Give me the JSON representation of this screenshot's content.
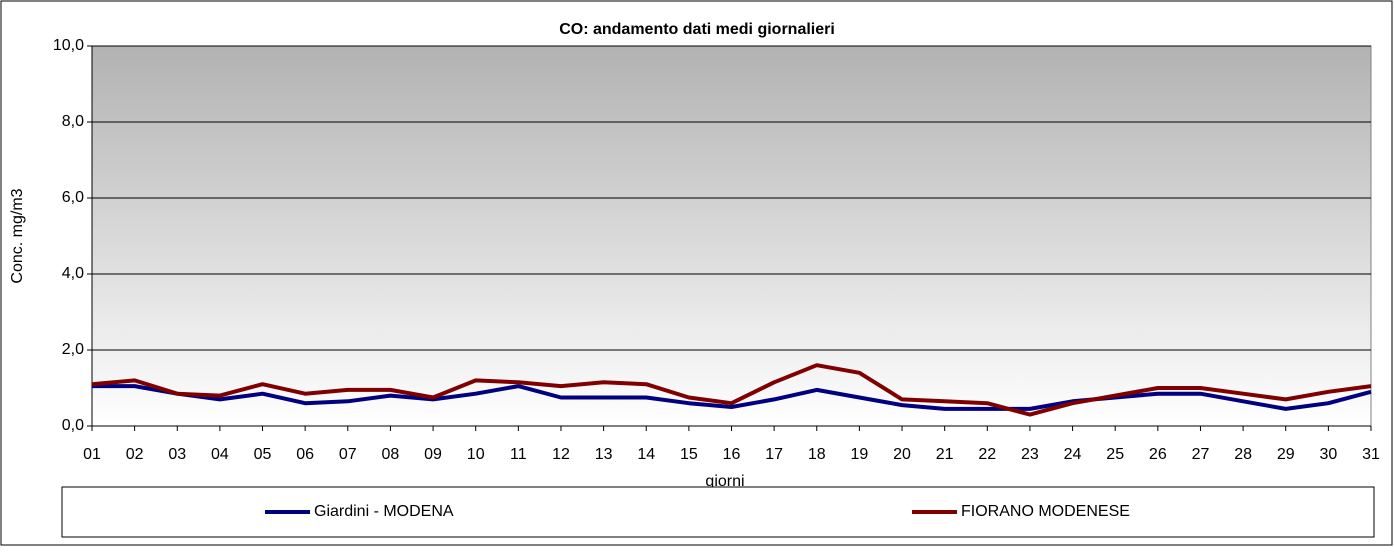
{
  "chart_data": {
    "type": "line",
    "title": "CO: andamento dati medi giornalieri",
    "x_label": "giorni",
    "y_label": "Conc. mg/m3",
    "categories": [
      "01",
      "02",
      "03",
      "04",
      "05",
      "06",
      "07",
      "08",
      "09",
      "10",
      "11",
      "12",
      "13",
      "14",
      "15",
      "16",
      "17",
      "18",
      "19",
      "20",
      "21",
      "22",
      "23",
      "24",
      "25",
      "26",
      "27",
      "28",
      "29",
      "30",
      "31"
    ],
    "series": [
      {
        "name": "Giardini  - MODENA",
        "color": "#000080",
        "values": [
          1.05,
          1.05,
          0.85,
          0.7,
          0.85,
          0.6,
          0.65,
          0.8,
          0.7,
          0.85,
          1.05,
          0.75,
          0.75,
          0.75,
          0.6,
          0.5,
          0.7,
          0.95,
          0.75,
          0.55,
          0.45,
          0.45,
          0.45,
          0.65,
          0.75,
          0.85,
          0.85,
          0.65,
          0.45,
          0.6,
          0.9
        ]
      },
      {
        "name": "FIORANO MODENESE",
        "color": "#800000",
        "values": [
          1.1,
          1.2,
          0.85,
          0.8,
          1.1,
          0.85,
          0.95,
          0.95,
          0.75,
          1.2,
          1.15,
          1.05,
          1.15,
          1.1,
          0.75,
          0.6,
          1.15,
          1.6,
          1.4,
          0.7,
          0.65,
          0.6,
          0.3,
          0.6,
          0.8,
          1.0,
          1.0,
          0.85,
          0.7,
          0.9,
          1.05
        ]
      }
    ],
    "ylim": [
      0,
      10
    ],
    "yticks": [
      {
        "value": 0,
        "label": "0,0"
      },
      {
        "value": 2,
        "label": "2,0"
      },
      {
        "value": 4,
        "label": "4,0"
      },
      {
        "value": 6,
        "label": "6,0"
      },
      {
        "value": 8,
        "label": "8,0"
      },
      {
        "value": 10,
        "label": "10,0"
      }
    ],
    "grid": true,
    "legend": "bottom"
  }
}
